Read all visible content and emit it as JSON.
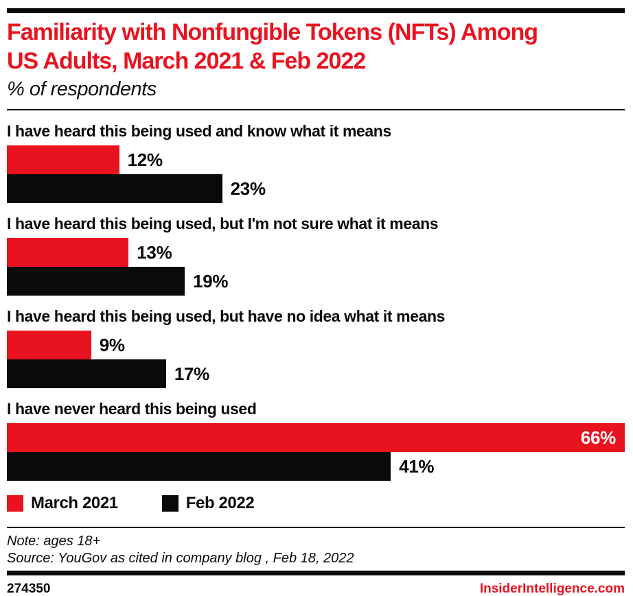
{
  "colors": {
    "red": "#e8131f",
    "black": "#0a0a0a",
    "white": "#ffffff"
  },
  "header": {
    "title_line1": "Familiarity with Nonfungible Tokens (NFTs) Among",
    "title_line2": "US Adults, March 2021 & Feb 2022",
    "subtitle": "% of respondents"
  },
  "chart_data": {
    "type": "bar",
    "orientation": "horizontal",
    "title": "Familiarity with Nonfungible Tokens (NFTs) Among US Adults, March 2021 & Feb 2022",
    "subtitle": "% of respondents",
    "unit": "%",
    "axis_max": 66,
    "grid": false,
    "legend_position": "bottom",
    "categories": [
      "I have heard this being used and know what it means",
      "I have heard this being used, but I'm not sure what it means",
      "I have heard this being used, but have no idea what it means",
      "I have never heard this being used"
    ],
    "series": [
      {
        "name": "March 2021",
        "color": "#e8131f",
        "values": [
          12,
          13,
          9,
          66
        ]
      },
      {
        "name": "Feb 2022",
        "color": "#0a0a0a",
        "values": [
          23,
          19,
          17,
          41
        ]
      }
    ],
    "value_labels": [
      [
        "12%",
        "23%"
      ],
      [
        "13%",
        "19%"
      ],
      [
        "9%",
        "17%"
      ],
      [
        "66%",
        "41%"
      ]
    ]
  },
  "footer": {
    "note": "Note: ages 18+",
    "source": "Source: YouGov as cited in company blog , Feb 18, 2022",
    "chart_id": "274350",
    "website": "InsiderIntelligence.com"
  }
}
